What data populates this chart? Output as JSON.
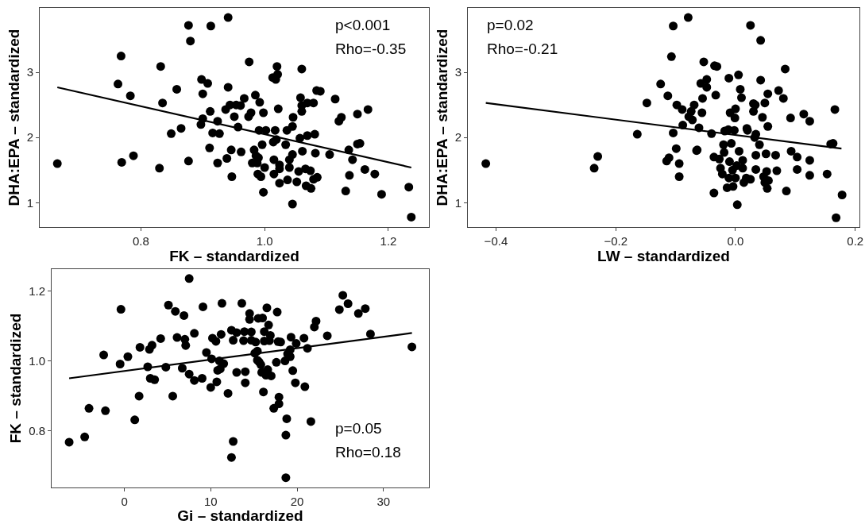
{
  "chart_data": [
    {
      "type": "scatter",
      "xlabel": "FK – standardized",
      "ylabel": "DHA:EPA – standardized",
      "xlim": [
        0.6365,
        1.2655
      ],
      "ylim": [
        0.627,
        3.987
      ],
      "xticks": [
        {
          "value": 0.8,
          "label": "0.8"
        },
        {
          "value": 1.0,
          "label": "1.0"
        },
        {
          "value": 1.2,
          "label": "1.2"
        }
      ],
      "yticks": [
        1,
        2,
        3
      ],
      "annotations": [
        "p<0.001",
        "Rho=-0.35"
      ],
      "series": [
        {
          "type": "scatter",
          "marker": "circle",
          "color": "#000000",
          "x": [
            0.665,
            0.763,
            0.768,
            0.769,
            0.783,
            0.788,
            0.83,
            0.832,
            0.835,
            0.849,
            0.858,
            0.865,
            0.877,
            0.877,
            0.88,
            0.897,
            0.898,
            0.9,
            0.9,
            0.908,
            0.911,
            0.912,
            0.913,
            0.916,
            0.924,
            0.924,
            0.927,
            0.937,
            0.939,
            0.941,
            0.941,
            0.944,
            0.946,
            0.947,
            0.951,
            0.954,
            0.957,
            0.961,
            0.962,
            0.967,
            0.974,
            0.975,
            0.978,
            0.98,
            0.983,
            0.985,
            0.986,
            0.988,
            0.989,
            0.99,
            0.991,
            0.992,
            0.994,
            0.996,
            0.998,
            0.998,
            1.0,
            1.002,
            1.013,
            1.014,
            1.015,
            1.015,
            1.017,
            1.018,
            1.019,
            1.02,
            1.021,
            1.022,
            1.024,
            1.024,
            1.024,
            1.034,
            1.036,
            1.037,
            1.04,
            1.04,
            1.045,
            1.045,
            1.045,
            1.046,
            1.052,
            1.055,
            1.057,
            1.06,
            1.06,
            1.06,
            1.058,
            1.061,
            1.066,
            1.067,
            1.069,
            1.069,
            1.074,
            1.075,
            1.079,
            1.079,
            1.081,
            1.082,
            1.085,
            1.084,
            1.09,
            1.105,
            1.114,
            1.12,
            1.124,
            1.131,
            1.136,
            1.137,
            1.142,
            1.15,
            1.15,
            1.154,
            1.162,
            1.167,
            1.178,
            1.189,
            1.233,
            1.237
          ],
          "values": [
            1.6,
            2.82,
            3.25,
            1.62,
            2.64,
            1.72,
            1.53,
            3.09,
            2.53,
            2.06,
            2.74,
            2.14,
            3.72,
            1.64,
            3.48,
            2.2,
            2.89,
            2.29,
            2.67,
            2.83,
            1.84,
            2.4,
            3.71,
            2.07,
            2.25,
            1.61,
            2.06,
            2.43,
            1.68,
            2.77,
            3.84,
            2.5,
            1.81,
            1.4,
            2.32,
            2.5,
            2.16,
            2.49,
            1.78,
            2.6,
            2.32,
            3.16,
            2.38,
            1.61,
            1.81,
            2.65,
            1.72,
            1.61,
            1.44,
            1.69,
            2.11,
            2.54,
            1.4,
            1.89,
            2.38,
            1.16,
            1.54,
            2.11,
            2.92,
            1.93,
            1.66,
            1.44,
            2.11,
            2.89,
            1.97,
            3.09,
            2.97,
            2.44,
            1.58,
            1.52,
            1.3,
            1.89,
            2.11,
            1.35,
            1.66,
            1.54,
            1.74,
            0.98,
            2.17,
            2.31,
            1.32,
            1.48,
            1.99,
            3.05,
            2.4,
            2.49,
            2.61,
            1.79,
            1.52,
            1.26,
            2.03,
            2.53,
            1.49,
            1.22,
            2.53,
            1.36,
            2.05,
            1.76,
            1.39,
            2.72,
            2.71,
            1.74,
            2.59,
            2.25,
            2.31,
            1.18,
            1.81,
            1.42,
            1.66,
            2.36,
            1.9,
            1.91,
            1.51,
            2.43,
            1.44,
            1.13,
            1.24,
            0.78
          ]
        },
        {
          "type": "line",
          "marker": "none",
          "line_style": "solid",
          "color": "#000000",
          "x": [
            0.665,
            1.237
          ],
          "values": [
            2.77,
            1.54
          ]
        }
      ]
    },
    {
      "type": "scatter",
      "xlabel": "LW – standardized",
      "ylabel": "DHA:EPA – standardized",
      "xlim": [
        -0.447,
        0.207
      ],
      "ylim": [
        0.627,
        3.987
      ],
      "xticks": [
        {
          "value": -0.4,
          "label": "−0.4"
        },
        {
          "value": -0.2,
          "label": "−0.2"
        },
        {
          "value": 0.0,
          "label": "0.0"
        },
        {
          "value": 0.2,
          "label": "0.2"
        }
      ],
      "yticks": [
        1,
        2,
        3
      ],
      "annotations": [
        "p=0.02",
        "Rho=-0.21"
      ],
      "series": [
        {
          "type": "scatter",
          "marker": "circle",
          "color": "#000000",
          "x": [
            -0.417,
            -0.236,
            -0.23,
            -0.164,
            -0.148,
            -0.125,
            -0.115,
            -0.113,
            -0.111,
            -0.107,
            -0.104,
            -0.104,
            -0.099,
            -0.098,
            -0.094,
            -0.094,
            -0.089,
            -0.088,
            -0.079,
            -0.078,
            -0.074,
            -0.072,
            -0.069,
            -0.065,
            -0.064,
            -0.061,
            -0.058,
            -0.056,
            -0.055,
            -0.053,
            -0.048,
            -0.048,
            -0.04,
            -0.036,
            -0.036,
            -0.035,
            -0.033,
            -0.031,
            -0.027,
            -0.025,
            -0.022,
            -0.02,
            -0.019,
            -0.018,
            -0.014,
            -0.012,
            -0.011,
            -0.011,
            -0.01,
            -0.009,
            -0.007,
            -0.005,
            -0.004,
            -0.002,
            -0.001,
            0.0,
            0.0,
            0.002,
            0.003,
            0.005,
            0.006,
            0.008,
            0.01,
            0.012,
            0.012,
            0.014,
            0.018,
            0.019,
            0.02,
            0.025,
            0.025,
            0.03,
            0.03,
            0.032,
            0.033,
            0.034,
            0.034,
            0.034,
            0.04,
            0.042,
            0.042,
            0.045,
            0.047,
            0.049,
            0.049,
            0.051,
            0.052,
            0.053,
            0.054,
            0.054,
            0.055,
            0.067,
            0.069,
            0.072,
            0.08,
            0.083,
            0.085,
            0.092,
            0.093,
            0.103,
            0.103,
            0.114,
            0.124,
            0.124,
            0.124,
            0.153,
            0.159,
            0.163,
            0.166,
            0.168,
            0.178
          ],
          "values": [
            1.6,
            1.53,
            1.71,
            2.05,
            2.53,
            2.82,
            1.64,
            2.64,
            1.69,
            3.24,
            2.07,
            3.71,
            1.83,
            2.5,
            1.6,
            1.4,
            2.43,
            2.19,
            3.84,
            2.32,
            2.4,
            2.27,
            2.5,
            1.8,
            1.81,
            2.15,
            2.83,
            2.38,
            2.6,
            3.16,
            2.89,
            2.77,
            2.06,
            1.15,
            1.7,
            3.1,
            2.65,
            3.09,
            1.67,
            1.53,
            1.44,
            1.89,
            1.77,
            2.1,
            1.23,
            2.12,
            2.91,
            1.38,
            1.63,
            2.38,
            1.91,
            1.5,
            1.25,
            2.11,
            2.3,
            2.44,
            1.38,
            1.57,
            0.97,
            2.96,
            1.79,
            2.74,
            2.61,
            1.53,
            1.65,
            1.31,
            1.38,
            2.14,
            2.11,
            3.72,
            1.36,
            2.4,
            2.52,
            2.0,
            2.5,
            2.05,
            1.73,
            1.51,
            1.89,
            3.49,
            2.88,
            2.31,
            1.4,
            2.53,
            1.31,
            1.75,
            1.48,
            1.22,
            2.67,
            2.17,
            1.34,
            1.73,
            1.49,
            2.72,
            2.6,
            3.05,
            1.18,
            2.3,
            1.79,
            1.7,
            1.51,
            2.36,
            2.25,
            1.65,
            1.42,
            1.44,
            1.9,
            1.91,
            2.43,
            0.77,
            1.12
          ]
        },
        {
          "type": "line",
          "marker": "none",
          "line_style": "solid",
          "color": "#000000",
          "x": [
            -0.417,
            0.177
          ],
          "values": [
            2.53,
            1.83
          ]
        }
      ]
    },
    {
      "type": "scatter",
      "xlabel": "Gi – standardized",
      "ylabel": "FK – standardized",
      "xlim": [
        -8.43,
        35.27
      ],
      "ylim": [
        0.637,
        1.263
      ],
      "xticks": [
        0,
        10,
        20,
        30
      ],
      "yticks": [
        0.8,
        {
          "value": 1.0,
          "label": "1.0"
        },
        1.2
      ],
      "annotations": [
        "p=0.05",
        "Rho=0.18"
      ],
      "series": [
        {
          "type": "scatter",
          "marker": "circle",
          "color": "#000000",
          "x": [
            -6.4,
            -4.6,
            -4.1,
            -2.4,
            -2.2,
            -0.5,
            -0.4,
            0.4,
            1.2,
            1.7,
            1.8,
            2.7,
            2.9,
            3.0,
            3.2,
            3.5,
            4.2,
            4.8,
            5.1,
            5.6,
            5.9,
            6.1,
            6.7,
            6.9,
            7.0,
            7.1,
            7.5,
            7.5,
            8.1,
            8.1,
            9.0,
            9.1,
            9.5,
            10.0,
            10.1,
            10.2,
            10.6,
            10.7,
            10.8,
            11.0,
            11.1,
            11.2,
            11.3,
            11.5,
            12.0,
            12.4,
            12.4,
            12.6,
            12.6,
            13.0,
            13.0,
            13.6,
            13.8,
            13.9,
            14.0,
            14.0,
            14.5,
            14.5,
            14.7,
            14.7,
            15.1,
            15.2,
            15.4,
            15.4,
            15.5,
            15.6,
            15.8,
            15.9,
            16.0,
            16.1,
            16.2,
            16.2,
            16.4,
            16.5,
            16.6,
            16.7,
            16.8,
            16.9,
            17.0,
            17.3,
            17.6,
            17.7,
            17.8,
            17.9,
            17.9,
            18.1,
            18.6,
            18.7,
            18.7,
            18.8,
            18.9,
            19.2,
            19.3,
            19.2,
            19.5,
            19.8,
            19.9,
            20.8,
            20.9,
            21.2,
            21.6,
            22.0,
            22.2,
            23.5,
            24.9,
            25.3,
            25.9,
            27.1,
            27.9,
            28.5,
            33.3
          ],
          "values": [
            0.767,
            0.782,
            0.864,
            1.017,
            0.857,
            0.991,
            1.148,
            1.012,
            0.831,
            0.899,
            1.039,
            0.983,
            1.033,
            0.95,
            1.045,
            0.946,
            1.064,
            0.982,
            1.16,
            0.899,
            1.142,
            1.067,
            0.979,
            1.13,
            1.062,
            1.044,
            1.236,
            0.962,
            1.079,
            0.944,
            0.95,
            1.155,
            1.024,
            0.924,
            1.006,
            1.065,
            1.056,
            0.94,
            0.973,
            1.0,
            0.977,
            1.076,
            1.165,
            0.992,
            0.907,
            1.088,
            0.723,
            1.059,
            0.769,
            0.967,
            1.081,
            1.165,
            1.058,
            1.084,
            0.969,
            0.937,
            1.136,
            1.119,
            1.083,
            1.059,
            1.022,
            1.054,
            1.028,
            1.002,
            1.122,
            0.997,
            0.989,
            0.967,
            1.123,
            0.911,
            1.084,
            1.057,
            0.959,
            1.152,
            0.975,
            1.103,
            1.058,
            1.073,
            0.957,
            0.864,
            0.996,
            1.14,
            1.055,
            0.877,
            0.896,
            1.054,
            1.0,
            0.787,
            0.665,
            0.834,
            1.02,
            1.012,
            1.068,
            1.032,
            0.972,
            0.937,
            1.05,
            1.065,
            0.926,
            1.036,
            0.826,
            1.097,
            1.114,
            1.072,
            1.147,
            1.188,
            1.164,
            1.136,
            1.15,
            1.077,
            1.04
          ]
        },
        {
          "type": "line",
          "marker": "none",
          "line_style": "solid",
          "color": "#000000",
          "x": [
            -6.4,
            33.3
          ],
          "values": [
            0.95,
            1.08
          ]
        }
      ]
    }
  ]
}
